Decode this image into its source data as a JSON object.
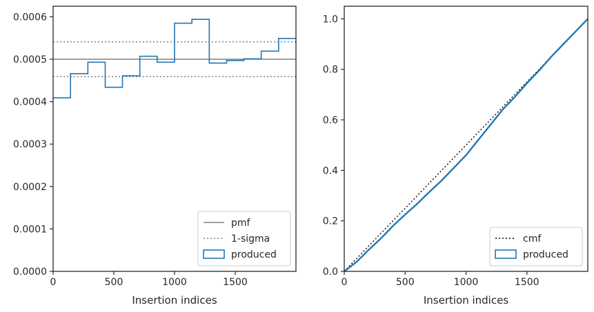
{
  "chart_data": [
    {
      "type": "line",
      "xlabel": "Insertion indices",
      "ylabel": "",
      "xlim": [
        0,
        2000
      ],
      "ylim": [
        0,
        0.000625
      ],
      "xticks": [
        0,
        500,
        1000,
        1500
      ],
      "xtick_labels": [
        "0",
        "500",
        "1000",
        "1500"
      ],
      "yticks": [
        0,
        0.0001,
        0.0002,
        0.0003,
        0.0004,
        0.0005,
        0.0006
      ],
      "ytick_labels": [
        "0.0000",
        "0.0001",
        "0.0002",
        "0.0003",
        "0.0004",
        "0.0005",
        "0.0006"
      ],
      "grid": false,
      "legend_position": "lower-right",
      "series": [
        {
          "name": "pmf",
          "kind": "hline",
          "y": 0.0005,
          "color": "#808080",
          "style": "solid"
        },
        {
          "name": "1-sigma",
          "kind": "hlines",
          "y": [
            0.000459,
            0.000541
          ],
          "color": "#808080",
          "style": "dotted"
        },
        {
          "name": "produced",
          "kind": "step-histogram",
          "color": "#1f77b4",
          "bin_edges": [
            0,
            143,
            286,
            429,
            571,
            714,
            857,
            1000,
            1143,
            1286,
            1429,
            1571,
            1714,
            1857,
            2000
          ],
          "values": [
            0.000409,
            0.000466,
            0.000493,
            0.000434,
            0.000461,
            0.000507,
            0.000493,
            0.000585,
            0.000594,
            0.000491,
            0.000497,
            0.000501,
            0.000519,
            0.000549
          ]
        }
      ]
    },
    {
      "type": "line",
      "xlabel": "Insertion indices",
      "ylabel": "",
      "xlim": [
        0,
        2000
      ],
      "ylim": [
        0,
        1.05
      ],
      "xticks": [
        0,
        500,
        1000,
        1500
      ],
      "xtick_labels": [
        "0",
        "500",
        "1000",
        "1500"
      ],
      "yticks": [
        0,
        0.2,
        0.4,
        0.6,
        0.8,
        1.0
      ],
      "ytick_labels": [
        "0.0",
        "0.2",
        "0.4",
        "0.6",
        "0.8",
        "1.0"
      ],
      "grid": false,
      "legend_position": "lower-right",
      "series": [
        {
          "name": "cmf",
          "x": [
            0,
            2000
          ],
          "y": [
            0,
            1.0
          ],
          "color": "#000000",
          "style": "dotted"
        },
        {
          "name": "produced",
          "color": "#1f77b4",
          "style": "solid",
          "x": [
            0,
            100,
            200,
            300,
            400,
            500,
            600,
            700,
            800,
            900,
            1000,
            1100,
            1200,
            1300,
            1400,
            1500,
            1600,
            1700,
            1800,
            1900,
            2000
          ],
          "y": [
            0,
            0.037,
            0.085,
            0.13,
            0.18,
            0.225,
            0.268,
            0.315,
            0.36,
            0.41,
            0.46,
            0.52,
            0.58,
            0.64,
            0.69,
            0.745,
            0.795,
            0.85,
            0.9,
            0.95,
            1.0
          ]
        }
      ]
    }
  ]
}
